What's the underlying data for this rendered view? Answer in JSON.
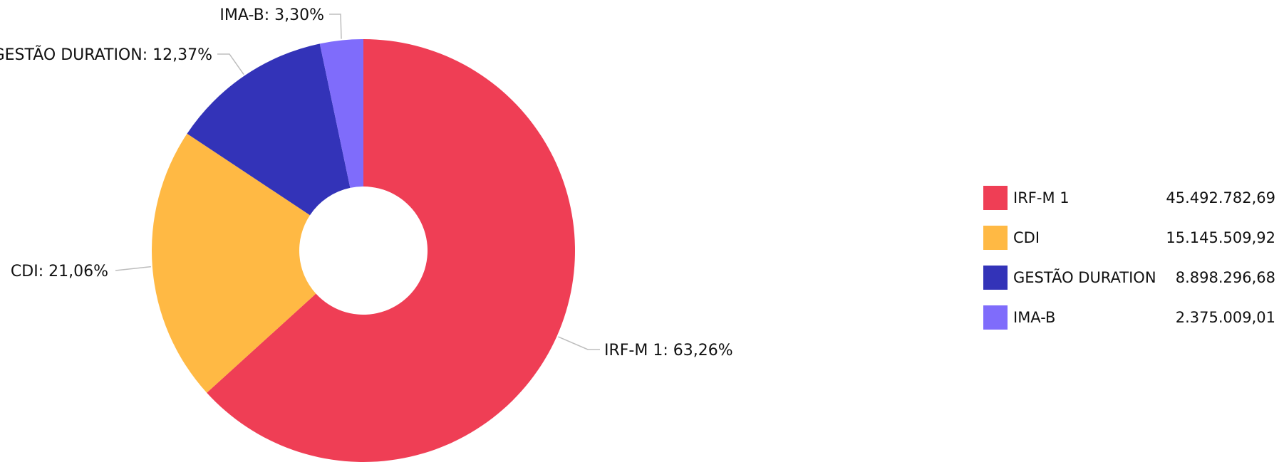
{
  "chart_data": {
    "type": "pie",
    "donut": true,
    "categories": [
      "IRF-M 1",
      "CDI",
      "GESTÃO DURATION",
      "IMA-B"
    ],
    "values": [
      45492782.69,
      15145509.92,
      8898296.68,
      2375009.01
    ],
    "percent_labels": [
      "IRF-M 1: 63,26%",
      "CDI: 21,06%",
      "GESTÃO DURATION: 12,37%",
      "IMA-B: 3,30%"
    ],
    "percents": [
      63.26,
      21.06,
      12.37,
      3.3
    ],
    "colors": [
      "#ef3e55",
      "#ffb944",
      "#3333b8",
      "#7f6cfb"
    ],
    "legend_position": "right",
    "legend": {
      "items": [
        {
          "label": "IRF-M 1",
          "value": "45.492.782,69"
        },
        {
          "label": "CDI",
          "value": "15.145.509,92"
        },
        {
          "label": "GESTÃO DURATION",
          "value": "8.898.296,68"
        },
        {
          "label": "IMA-B",
          "value": "2.375.009,01"
        }
      ]
    }
  }
}
